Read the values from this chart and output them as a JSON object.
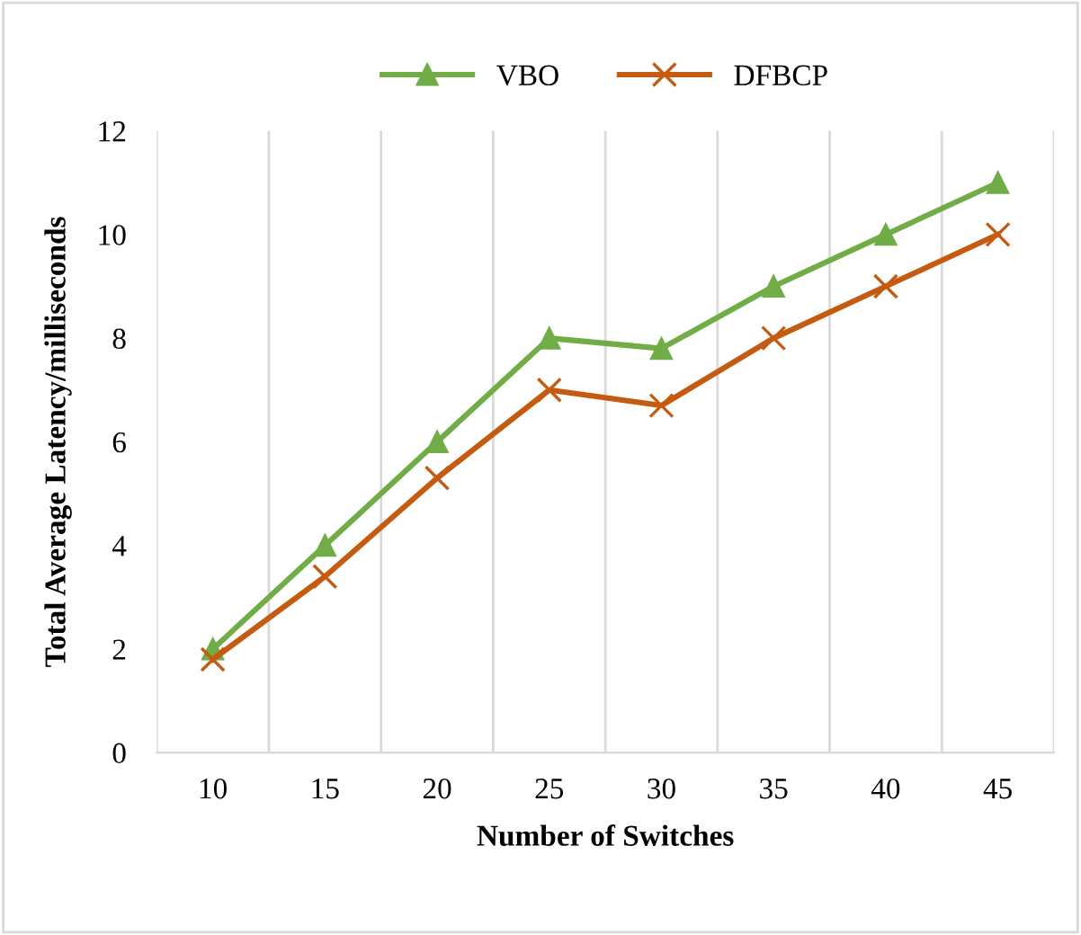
{
  "chart_data": {
    "type": "line",
    "xlabel": "Number of Switches",
    "ylabel": "Total Average Latency/milliseconds",
    "categories": [
      "10",
      "15",
      "20",
      "25",
      "30",
      "35",
      "40",
      "45"
    ],
    "series": [
      {
        "name": "VBO",
        "color": "#70ad47",
        "marker": "triangle",
        "values": [
          2,
          4,
          6,
          8,
          7.8,
          9,
          10,
          11
        ]
      },
      {
        "name": "DFBCP",
        "color": "#c55a11",
        "marker": "cross",
        "values": [
          1.8,
          3.4,
          5.3,
          7,
          6.7,
          8,
          9,
          10
        ]
      }
    ],
    "ylim": [
      0,
      12
    ],
    "yticks": [
      0,
      2,
      4,
      6,
      8,
      10,
      12
    ],
    "grid": "x",
    "legend": "top",
    "line_style": "solid"
  }
}
